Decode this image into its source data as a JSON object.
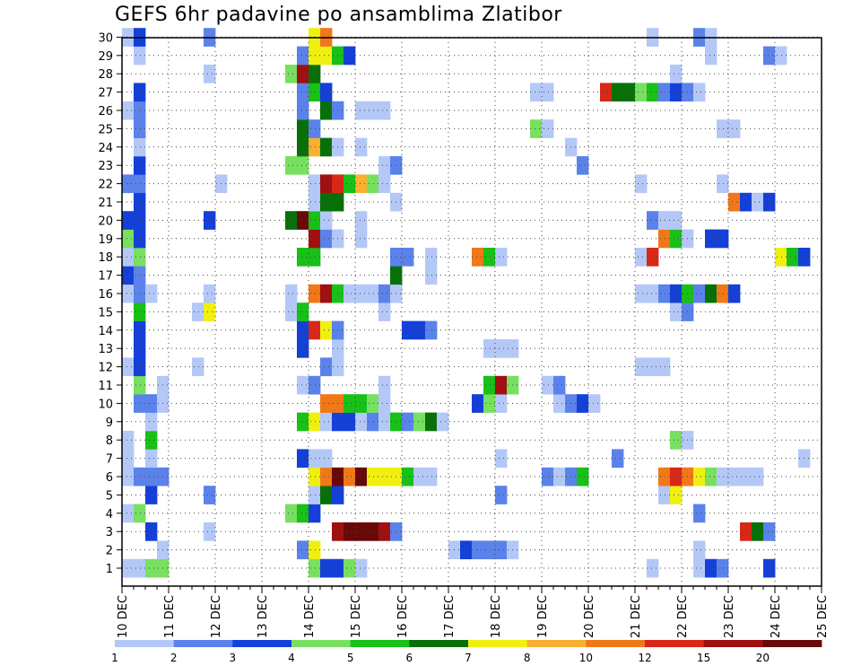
{
  "chart_data": {
    "type": "heatmap",
    "title": "GEFS 6hr padavine po ansamblima Zlatibor",
    "xlabel": "",
    "ylabel": "",
    "members": [
      "1",
      "2",
      "3",
      "4",
      "5",
      "6",
      "7",
      "8",
      "9",
      "10",
      "11",
      "12",
      "13",
      "14",
      "15",
      "16",
      "17",
      "18",
      "19",
      "20",
      "21",
      "22",
      "23",
      "24",
      "25",
      "26",
      "27",
      "28",
      "29",
      "30"
    ],
    "x_tick_labels": [
      "10 DEC",
      "11 DEC",
      "12 DEC",
      "13 DEC",
      "14 DEC",
      "15 DEC",
      "16 DEC",
      "17 DEC",
      "18 DEC",
      "19 DEC",
      "20 DEC",
      "21 DEC",
      "22 DEC",
      "23 DEC",
      "24 DEC",
      "25 DEC"
    ],
    "steps_per_day": 4,
    "grid": true,
    "colorbar": {
      "thresholds": [
        "1",
        "2",
        "3",
        "4",
        "5",
        "6",
        "7",
        "8",
        "10",
        "12",
        "15",
        "20"
      ],
      "colors": [
        "#b4c8f8",
        "#5a82ea",
        "#1440d8",
        "#78e060",
        "#18c018",
        "#087008",
        "#f0f010",
        "#f8b030",
        "#f07818",
        "#d82818",
        "#a01010",
        "#680808"
      ]
    },
    "cells": [
      [
        1,
        1,
        1
      ],
      [
        1,
        2,
        1
      ],
      [
        1,
        3,
        4
      ],
      [
        1,
        4,
        4
      ],
      [
        1,
        17,
        4
      ],
      [
        1,
        18,
        3
      ],
      [
        1,
        19,
        3
      ],
      [
        1,
        20,
        4
      ],
      [
        1,
        21,
        1
      ],
      [
        1,
        46,
        1
      ],
      [
        1,
        50,
        1
      ],
      [
        1,
        51,
        3
      ],
      [
        1,
        52,
        2
      ],
      [
        1,
        56,
        3
      ],
      [
        2,
        4,
        1
      ],
      [
        2,
        16,
        2
      ],
      [
        2,
        17,
        7
      ],
      [
        2,
        29,
        1
      ],
      [
        2,
        30,
        3
      ],
      [
        2,
        31,
        2
      ],
      [
        2,
        32,
        2
      ],
      [
        2,
        33,
        2
      ],
      [
        2,
        34,
        1
      ],
      [
        2,
        50,
        1
      ],
      [
        3,
        3,
        3
      ],
      [
        3,
        8,
        1
      ],
      [
        3,
        19,
        11
      ],
      [
        3,
        20,
        12
      ],
      [
        3,
        21,
        12
      ],
      [
        3,
        22,
        12
      ],
      [
        3,
        23,
        11
      ],
      [
        3,
        24,
        2
      ],
      [
        3,
        54,
        10
      ],
      [
        3,
        55,
        6
      ],
      [
        3,
        56,
        2
      ],
      [
        4,
        1,
        1
      ],
      [
        4,
        2,
        4
      ],
      [
        4,
        15,
        4
      ],
      [
        4,
        16,
        5
      ],
      [
        4,
        17,
        3
      ],
      [
        4,
        50,
        2
      ],
      [
        5,
        3,
        3
      ],
      [
        5,
        8,
        2
      ],
      [
        5,
        17,
        1
      ],
      [
        5,
        18,
        6
      ],
      [
        5,
        19,
        3
      ],
      [
        5,
        33,
        2
      ],
      [
        5,
        47,
        1
      ],
      [
        5,
        48,
        7
      ],
      [
        6,
        1,
        1
      ],
      [
        6,
        2,
        2
      ],
      [
        6,
        3,
        2
      ],
      [
        6,
        4,
        2
      ],
      [
        6,
        17,
        7
      ],
      [
        6,
        18,
        9
      ],
      [
        6,
        19,
        12
      ],
      [
        6,
        20,
        9
      ],
      [
        6,
        21,
        12
      ],
      [
        6,
        22,
        7
      ],
      [
        6,
        23,
        7
      ],
      [
        6,
        24,
        7
      ],
      [
        6,
        25,
        5
      ],
      [
        6,
        26,
        1
      ],
      [
        6,
        27,
        1
      ],
      [
        6,
        37,
        2
      ],
      [
        6,
        38,
        1
      ],
      [
        6,
        39,
        2
      ],
      [
        6,
        40,
        5
      ],
      [
        6,
        47,
        9
      ],
      [
        6,
        48,
        10
      ],
      [
        6,
        49,
        9
      ],
      [
        6,
        50,
        7
      ],
      [
        6,
        51,
        4
      ],
      [
        6,
        52,
        1
      ],
      [
        6,
        53,
        1
      ],
      [
        6,
        54,
        1
      ],
      [
        6,
        55,
        1
      ],
      [
        7,
        1,
        1
      ],
      [
        7,
        3,
        1
      ],
      [
        7,
        16,
        3
      ],
      [
        7,
        17,
        1
      ],
      [
        7,
        18,
        1
      ],
      [
        7,
        33,
        1
      ],
      [
        7,
        43,
        2
      ],
      [
        7,
        59,
        1
      ],
      [
        8,
        1,
        1
      ],
      [
        8,
        3,
        5
      ],
      [
        8,
        48,
        4
      ],
      [
        8,
        49,
        1
      ],
      [
        9,
        3,
        1
      ],
      [
        9,
        16,
        5
      ],
      [
        9,
        17,
        7
      ],
      [
        9,
        18,
        1
      ],
      [
        9,
        19,
        3
      ],
      [
        9,
        20,
        3
      ],
      [
        9,
        21,
        1
      ],
      [
        9,
        22,
        2
      ],
      [
        9,
        23,
        1
      ],
      [
        9,
        24,
        5
      ],
      [
        9,
        25,
        2
      ],
      [
        9,
        26,
        4
      ],
      [
        9,
        27,
        6
      ],
      [
        9,
        28,
        1
      ],
      [
        10,
        2,
        2
      ],
      [
        10,
        3,
        2
      ],
      [
        10,
        4,
        1
      ],
      [
        10,
        18,
        9
      ],
      [
        10,
        19,
        9
      ],
      [
        10,
        20,
        5
      ],
      [
        10,
        21,
        5
      ],
      [
        10,
        22,
        4
      ],
      [
        10,
        23,
        1
      ],
      [
        10,
        31,
        3
      ],
      [
        10,
        32,
        4
      ],
      [
        10,
        33,
        1
      ],
      [
        10,
        38,
        1
      ],
      [
        10,
        39,
        2
      ],
      [
        10,
        40,
        3
      ],
      [
        10,
        41,
        1
      ],
      [
        11,
        2,
        4
      ],
      [
        11,
        4,
        1
      ],
      [
        11,
        16,
        1
      ],
      [
        11,
        17,
        2
      ],
      [
        11,
        23,
        1
      ],
      [
        11,
        32,
        5
      ],
      [
        11,
        33,
        11
      ],
      [
        11,
        34,
        4
      ],
      [
        11,
        37,
        1
      ],
      [
        11,
        38,
        2
      ],
      [
        12,
        1,
        1
      ],
      [
        12,
        2,
        3
      ],
      [
        12,
        7,
        1
      ],
      [
        12,
        18,
        2
      ],
      [
        12,
        19,
        1
      ],
      [
        12,
        45,
        1
      ],
      [
        12,
        46,
        1
      ],
      [
        12,
        47,
        1
      ],
      [
        13,
        2,
        3
      ],
      [
        13,
        16,
        3
      ],
      [
        13,
        19,
        1
      ],
      [
        13,
        32,
        1
      ],
      [
        13,
        33,
        1
      ],
      [
        13,
        34,
        1
      ],
      [
        14,
        2,
        3
      ],
      [
        14,
        16,
        3
      ],
      [
        14,
        17,
        10
      ],
      [
        14,
        18,
        7
      ],
      [
        14,
        19,
        2
      ],
      [
        14,
        25,
        3
      ],
      [
        14,
        26,
        3
      ],
      [
        14,
        27,
        2
      ],
      [
        15,
        2,
        5
      ],
      [
        15,
        7,
        1
      ],
      [
        15,
        8,
        7
      ],
      [
        15,
        15,
        1
      ],
      [
        15,
        16,
        5
      ],
      [
        15,
        23,
        1
      ],
      [
        15,
        48,
        1
      ],
      [
        15,
        49,
        2
      ],
      [
        16,
        1,
        1
      ],
      [
        16,
        2,
        2
      ],
      [
        16,
        3,
        1
      ],
      [
        16,
        8,
        1
      ],
      [
        16,
        15,
        1
      ],
      [
        16,
        17,
        9
      ],
      [
        16,
        18,
        11
      ],
      [
        16,
        19,
        5
      ],
      [
        16,
        20,
        1
      ],
      [
        16,
        21,
        1
      ],
      [
        16,
        22,
        1
      ],
      [
        16,
        23,
        2
      ],
      [
        16,
        24,
        1
      ],
      [
        16,
        45,
        1
      ],
      [
        16,
        46,
        1
      ],
      [
        16,
        47,
        2
      ],
      [
        16,
        48,
        3
      ],
      [
        16,
        49,
        5
      ],
      [
        16,
        50,
        2
      ],
      [
        16,
        51,
        6
      ],
      [
        16,
        52,
        9
      ],
      [
        16,
        53,
        3
      ],
      [
        17,
        1,
        3
      ],
      [
        17,
        2,
        2
      ],
      [
        17,
        24,
        6
      ],
      [
        17,
        27,
        1
      ],
      [
        18,
        1,
        1
      ],
      [
        18,
        2,
        4
      ],
      [
        18,
        16,
        5
      ],
      [
        18,
        17,
        5
      ],
      [
        18,
        24,
        2
      ],
      [
        18,
        25,
        2
      ],
      [
        18,
        27,
        1
      ],
      [
        18,
        31,
        9
      ],
      [
        18,
        32,
        5
      ],
      [
        18,
        33,
        1
      ],
      [
        18,
        45,
        1
      ],
      [
        18,
        46,
        10
      ],
      [
        18,
        57,
        7
      ],
      [
        18,
        58,
        5
      ],
      [
        18,
        59,
        3
      ],
      [
        19,
        1,
        4
      ],
      [
        19,
        2,
        3
      ],
      [
        19,
        17,
        11
      ],
      [
        19,
        18,
        2
      ],
      [
        19,
        19,
        1
      ],
      [
        19,
        21,
        1
      ],
      [
        19,
        47,
        9
      ],
      [
        19,
        48,
        5
      ],
      [
        19,
        49,
        1
      ],
      [
        19,
        51,
        3
      ],
      [
        19,
        52,
        3
      ],
      [
        20,
        1,
        3
      ],
      [
        20,
        2,
        3
      ],
      [
        20,
        8,
        3
      ],
      [
        20,
        15,
        6
      ],
      [
        20,
        16,
        12
      ],
      [
        20,
        17,
        5
      ],
      [
        20,
        18,
        1
      ],
      [
        20,
        21,
        1
      ],
      [
        20,
        46,
        2
      ],
      [
        20,
        47,
        1
      ],
      [
        20,
        48,
        1
      ],
      [
        21,
        2,
        3
      ],
      [
        21,
        17,
        1
      ],
      [
        21,
        18,
        6
      ],
      [
        21,
        19,
        6
      ],
      [
        21,
        24,
        1
      ],
      [
        21,
        53,
        9
      ],
      [
        21,
        54,
        3
      ],
      [
        21,
        55,
        1
      ],
      [
        21,
        56,
        3
      ],
      [
        22,
        1,
        2
      ],
      [
        22,
        2,
        2
      ],
      [
        22,
        9,
        1
      ],
      [
        22,
        17,
        1
      ],
      [
        22,
        18,
        11
      ],
      [
        22,
        19,
        10
      ],
      [
        22,
        20,
        5
      ],
      [
        22,
        21,
        8
      ],
      [
        22,
        22,
        4
      ],
      [
        22,
        23,
        1
      ],
      [
        22,
        45,
        1
      ],
      [
        22,
        52,
        1
      ],
      [
        23,
        2,
        3
      ],
      [
        23,
        15,
        4
      ],
      [
        23,
        16,
        4
      ],
      [
        23,
        23,
        1
      ],
      [
        23,
        24,
        2
      ],
      [
        23,
        40,
        2
      ],
      [
        24,
        2,
        1
      ],
      [
        24,
        16,
        6
      ],
      [
        24,
        17,
        8
      ],
      [
        24,
        18,
        6
      ],
      [
        24,
        19,
        1
      ],
      [
        24,
        21,
        1
      ],
      [
        24,
        39,
        1
      ],
      [
        25,
        2,
        2
      ],
      [
        25,
        16,
        6
      ],
      [
        25,
        17,
        2
      ],
      [
        25,
        36,
        4
      ],
      [
        25,
        37,
        1
      ],
      [
        25,
        52,
        1
      ],
      [
        25,
        53,
        1
      ],
      [
        26,
        1,
        1
      ],
      [
        26,
        2,
        2
      ],
      [
        26,
        16,
        2
      ],
      [
        26,
        18,
        6
      ],
      [
        26,
        19,
        2
      ],
      [
        26,
        21,
        1
      ],
      [
        26,
        22,
        1
      ],
      [
        26,
        23,
        1
      ],
      [
        27,
        2,
        3
      ],
      [
        27,
        16,
        2
      ],
      [
        27,
        17,
        5
      ],
      [
        27,
        18,
        3
      ],
      [
        27,
        36,
        1
      ],
      [
        27,
        37,
        1
      ],
      [
        27,
        42,
        10
      ],
      [
        27,
        43,
        6
      ],
      [
        27,
        44,
        6
      ],
      [
        27,
        45,
        4
      ],
      [
        27,
        46,
        5
      ],
      [
        27,
        47,
        2
      ],
      [
        27,
        48,
        3
      ],
      [
        27,
        49,
        2
      ],
      [
        27,
        50,
        1
      ],
      [
        28,
        8,
        1
      ],
      [
        28,
        15,
        4
      ],
      [
        28,
        16,
        11
      ],
      [
        28,
        17,
        6
      ],
      [
        28,
        48,
        1
      ],
      [
        29,
        2,
        1
      ],
      [
        29,
        16,
        2
      ],
      [
        29,
        17,
        7
      ],
      [
        29,
        18,
        7
      ],
      [
        29,
        19,
        5
      ],
      [
        29,
        20,
        3
      ],
      [
        29,
        51,
        1
      ],
      [
        29,
        56,
        2
      ],
      [
        29,
        57,
        1
      ],
      [
        30,
        1,
        1
      ],
      [
        30,
        2,
        3
      ],
      [
        30,
        8,
        2
      ],
      [
        30,
        17,
        7
      ],
      [
        30,
        18,
        9
      ],
      [
        30,
        46,
        1
      ],
      [
        30,
        50,
        2
      ],
      [
        30,
        51,
        1
      ]
    ]
  }
}
